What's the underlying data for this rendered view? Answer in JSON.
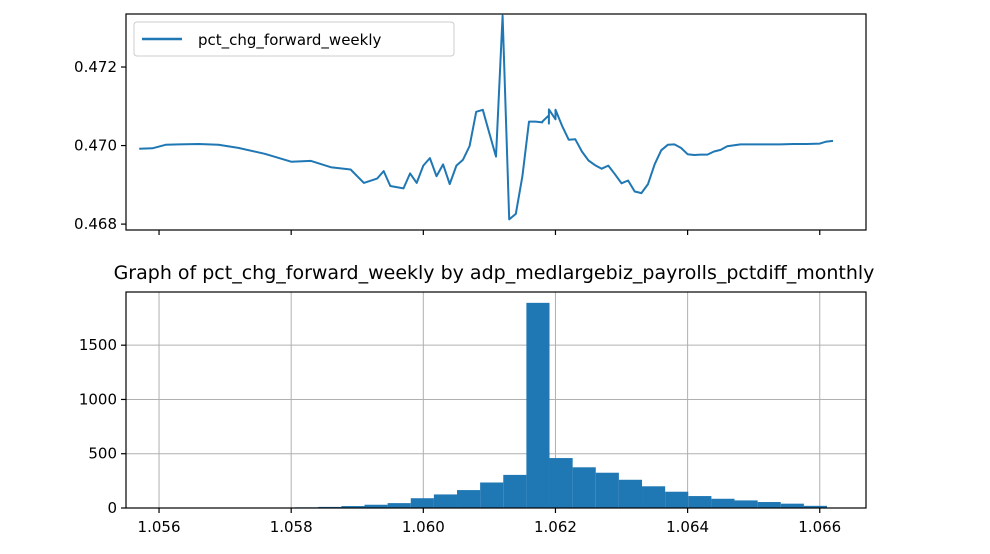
{
  "chart_data": [
    {
      "type": "line",
      "title": "",
      "xlabel": "",
      "ylabel": "",
      "x_ticks": [
        1.056,
        1.058,
        1.06,
        1.062,
        1.064,
        1.066
      ],
      "x_tick_labels_visible": false,
      "xlim": [
        1.0555,
        1.0667
      ],
      "ylim": [
        0.46785,
        0.47335
      ],
      "y_ticks": [
        0.468,
        0.47,
        0.472
      ],
      "y_tick_labels": [
        "0.468",
        "0.470",
        "0.472"
      ],
      "grid": false,
      "legend": {
        "placement": "top-left",
        "entries": [
          "pct_chg_forward_weekly"
        ]
      },
      "color": "#1f77b4",
      "series": [
        {
          "name": "pct_chg_forward_weekly",
          "x": [
            1.0557,
            1.0559,
            1.0561,
            1.0563,
            1.0566,
            1.0569,
            1.0572,
            1.0576,
            1.058,
            1.0583,
            1.0586,
            1.0589,
            1.0591,
            1.0593,
            1.0594,
            1.0595,
            1.0597,
            1.0598,
            1.0599,
            1.06,
            1.0601,
            1.0602,
            1.0603,
            1.0604,
            1.0605,
            1.0606,
            1.0607,
            1.0608,
            1.0609,
            1.061,
            1.0611,
            1.0612,
            1.0613,
            1.0614,
            1.0615,
            1.0616,
            1.0617,
            1.0618,
            1.0618,
            1.0619,
            1.0619,
            1.0619,
            1.062,
            1.062,
            1.0621,
            1.0622,
            1.0623,
            1.0624,
            1.0625,
            1.0626,
            1.0627,
            1.0628,
            1.0629,
            1.063,
            1.0631,
            1.0632,
            1.0633,
            1.0634,
            1.0635,
            1.0636,
            1.0637,
            1.0638,
            1.0639,
            1.064,
            1.0641,
            1.0642,
            1.0643,
            1.0644,
            1.0645,
            1.0646,
            1.0648,
            1.065,
            1.0652,
            1.0654,
            1.0656,
            1.0658,
            1.066,
            1.0661,
            1.0662
          ],
          "y": [
            0.46992,
            0.46993,
            0.47002,
            0.47003,
            0.47004,
            0.47002,
            0.46994,
            0.46979,
            0.46959,
            0.46961,
            0.46945,
            0.46939,
            0.46905,
            0.46916,
            0.46935,
            0.46897,
            0.46891,
            0.46929,
            0.46905,
            0.46949,
            0.46968,
            0.46922,
            0.46952,
            0.46902,
            0.46949,
            0.46964,
            0.46999,
            0.47086,
            0.47091,
            0.47031,
            0.46972,
            0.47331,
            0.46812,
            0.46826,
            0.46922,
            0.47061,
            0.47061,
            0.47059,
            0.47061,
            0.47077,
            0.47056,
            0.47092,
            0.47067,
            0.47091,
            0.4705,
            0.47015,
            0.47016,
            0.46985,
            0.46962,
            0.4695,
            0.46941,
            0.46949,
            0.46927,
            0.46904,
            0.46911,
            0.46883,
            0.46879,
            0.46902,
            0.46952,
            0.46988,
            0.47002,
            0.47003,
            0.46994,
            0.46978,
            0.46976,
            0.46977,
            0.46977,
            0.46985,
            0.46989,
            0.46998,
            0.47003,
            0.47003,
            0.47003,
            0.47003,
            0.47004,
            0.47004,
            0.47005,
            0.4701,
            0.47012
          ]
        }
      ]
    },
    {
      "type": "bar",
      "title": "Graph of pct_chg_forward_weekly by adp_medlargebiz_payrolls_pctdiff_monthly",
      "xlabel": "",
      "ylabel": "",
      "xlim": [
        1.0555,
        1.0667
      ],
      "ylim": [
        0,
        1990
      ],
      "x_ticks": [
        1.056,
        1.058,
        1.06,
        1.062,
        1.064,
        1.066
      ],
      "x_tick_labels": [
        "1.056",
        "1.058",
        "1.060",
        "1.062",
        "1.064",
        "1.066"
      ],
      "y_ticks": [
        0,
        500,
        1000,
        1500
      ],
      "y_tick_labels": [
        "0",
        "500",
        "1000",
        "1500"
      ],
      "grid": true,
      "color": "#1f77b4",
      "bin_edges": [
        1.05561,
        1.05596,
        1.05631,
        1.05666,
        1.05701,
        1.05736,
        1.05771,
        1.05806,
        1.05841,
        1.05876,
        1.05911,
        1.05946,
        1.05981,
        1.06016,
        1.06051,
        1.06086,
        1.06121,
        1.06156,
        1.06191,
        1.06226,
        1.06261,
        1.06296,
        1.06331,
        1.06366,
        1.06401,
        1.06436,
        1.06471,
        1.06506,
        1.06541,
        1.06576,
        1.06611
      ],
      "values": [
        1,
        1,
        1,
        2,
        2,
        3,
        4,
        6,
        10,
        18,
        30,
        45,
        90,
        125,
        165,
        235,
        305,
        1890,
        460,
        375,
        325,
        260,
        200,
        150,
        110,
        85,
        70,
        55,
        40,
        20
      ]
    }
  ]
}
